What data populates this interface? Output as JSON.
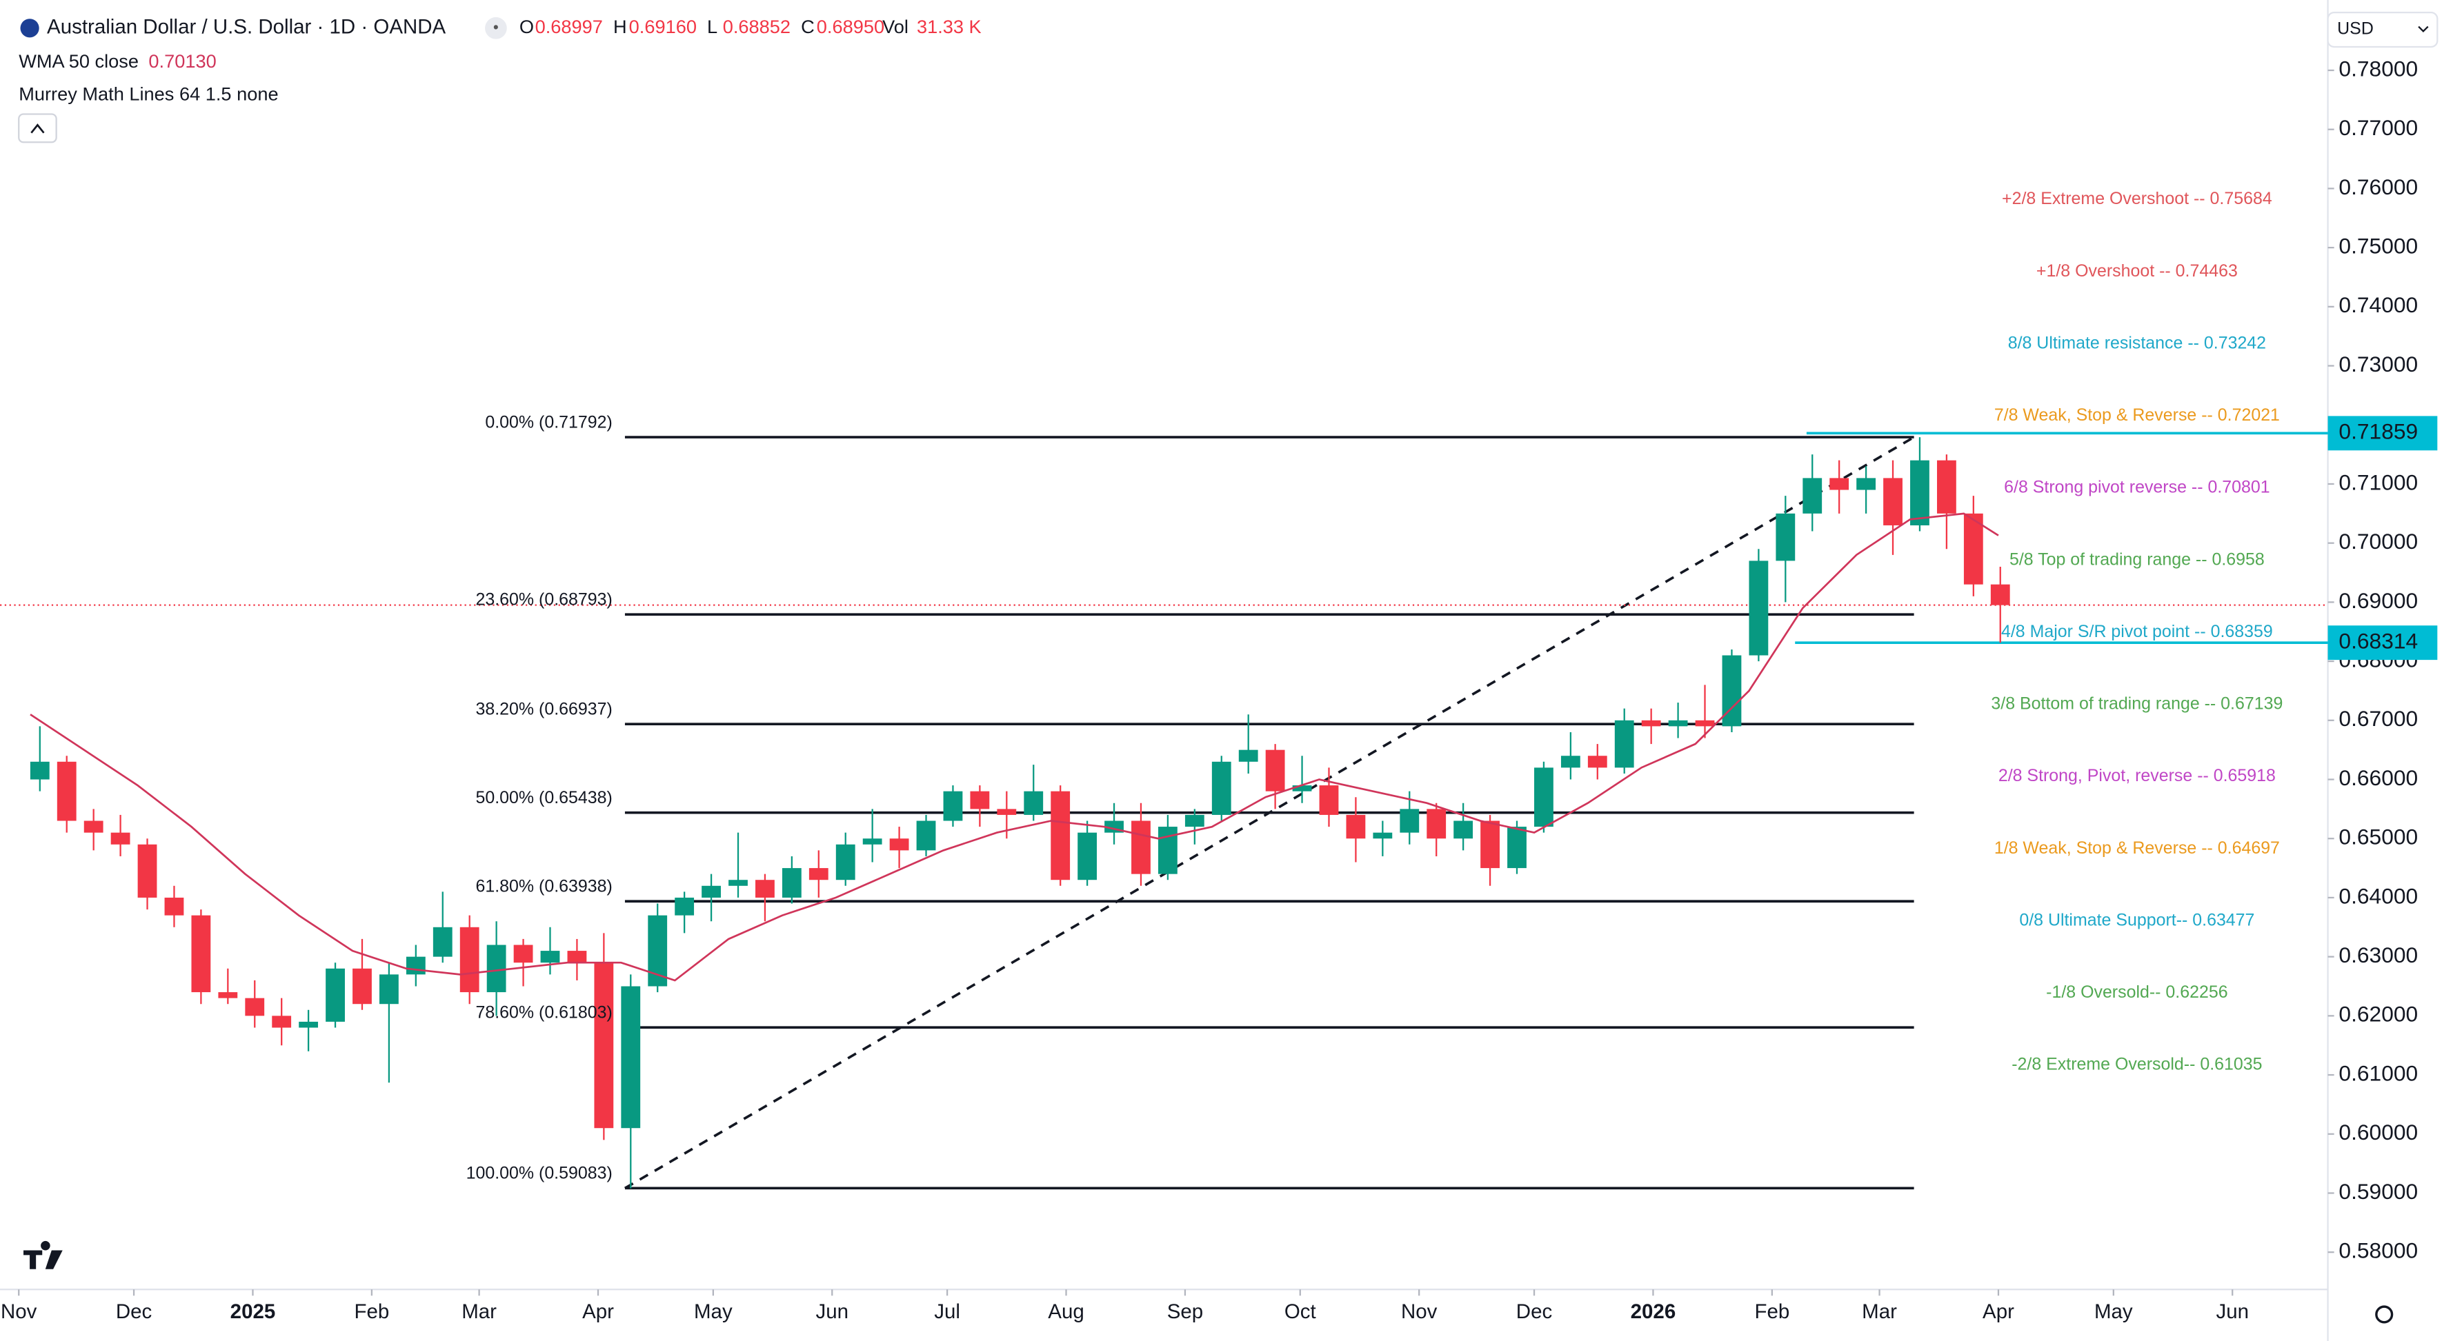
{
  "chart_data": {
    "type": "candlestick",
    "title": "Australian Dollar / U.S. Dollar · 1D · OANDA",
    "ohlc_header": [
      {
        "key": "O",
        "value": 0.68997,
        "label": "0.68997"
      },
      {
        "key": "H",
        "value": 0.6916,
        "label": "0.69160"
      },
      {
        "key": "L",
        "value": 0.68852,
        "label": "0.68852"
      },
      {
        "key": "C",
        "value": 0.6895,
        "label": "0.68950"
      }
    ],
    "volume": {
      "key": "Vol",
      "label": "31.33 K"
    },
    "indicators": [
      {
        "name": "WMA 50 close",
        "value": 0.7013,
        "label": "0.70130"
      },
      {
        "name": "Murrey Math Lines 64 1.5 none"
      }
    ],
    "currency": "USD",
    "xlim": [
      "2024-11-01",
      "2026-06-01"
    ],
    "xticks": [
      {
        "value": "2024-11-01",
        "label": "Nov"
      },
      {
        "value": "2024-12-01",
        "label": "Dec"
      },
      {
        "value": "2025-01-01",
        "label": "2025"
      },
      {
        "value": "2025-02-01",
        "label": "Feb"
      },
      {
        "value": "2025-03-01",
        "label": "Mar"
      },
      {
        "value": "2025-04-01",
        "label": "Apr"
      },
      {
        "value": "2025-05-01",
        "label": "May"
      },
      {
        "value": "2025-06-01",
        "label": "Jun"
      },
      {
        "value": "2025-07-01",
        "label": "Jul"
      },
      {
        "value": "2025-08-01",
        "label": "Aug"
      },
      {
        "value": "2025-09-01",
        "label": "Sep"
      },
      {
        "value": "2025-10-01",
        "label": "Oct"
      },
      {
        "value": "2025-11-01",
        "label": "Nov"
      },
      {
        "value": "2025-12-01",
        "label": "Dec"
      },
      {
        "value": "2026-01-01",
        "label": "2026"
      },
      {
        "value": "2026-02-01",
        "label": "Feb"
      },
      {
        "value": "2026-03-01",
        "label": "Mar"
      },
      {
        "value": "2026-04-01",
        "label": "Apr"
      },
      {
        "value": "2026-05-01",
        "label": "May"
      },
      {
        "value": "2026-06-01",
        "label": "Jun"
      }
    ],
    "ylim": [
      0.5737,
      0.7919
    ],
    "yticks": [
      {
        "value": 0.58,
        "label": "0.58000"
      },
      {
        "value": 0.59,
        "label": "0.59000"
      },
      {
        "value": 0.6,
        "label": "0.60000"
      },
      {
        "value": 0.61,
        "label": "0.61000"
      },
      {
        "value": 0.62,
        "label": "0.62000"
      },
      {
        "value": 0.63,
        "label": "0.63000"
      },
      {
        "value": 0.64,
        "label": "0.64000"
      },
      {
        "value": 0.65,
        "label": "0.65000"
      },
      {
        "value": 0.66,
        "label": "0.66000"
      },
      {
        "value": 0.67,
        "label": "0.67000"
      },
      {
        "value": 0.68,
        "label": "0.68000"
      },
      {
        "value": 0.69,
        "label": "0.69000"
      },
      {
        "value": 0.7,
        "label": "0.70000"
      },
      {
        "value": 0.71,
        "label": "0.71000"
      },
      {
        "value": 0.73,
        "label": "0.73000"
      },
      {
        "value": 0.74,
        "label": "0.74000"
      },
      {
        "value": 0.75,
        "label": "0.75000"
      },
      {
        "value": 0.76,
        "label": "0.76000"
      },
      {
        "value": 0.77,
        "label": "0.77000"
      },
      {
        "value": 0.78,
        "label": "0.78000"
      }
    ],
    "up_color": "#089981",
    "down_color": "#f23645",
    "x": [
      "2024-11-04",
      "2024-11-11",
      "2024-11-18",
      "2024-11-25",
      "2024-12-02",
      "2024-12-09",
      "2024-12-16",
      "2024-12-23",
      "2024-12-30",
      "2025-01-06",
      "2025-01-13",
      "2025-01-20",
      "2025-01-27",
      "2025-02-03",
      "2025-02-10",
      "2025-02-17",
      "2025-02-24",
      "2025-03-03",
      "2025-03-10",
      "2025-03-17",
      "2025-03-24",
      "2025-03-31",
      "2025-04-07",
      "2025-04-14",
      "2025-04-21",
      "2025-04-28",
      "2025-05-05",
      "2025-05-12",
      "2025-05-19",
      "2025-05-26",
      "2025-06-02",
      "2025-06-09",
      "2025-06-16",
      "2025-06-23",
      "2025-06-30",
      "2025-07-07",
      "2025-07-14",
      "2025-07-21",
      "2025-07-28",
      "2025-08-04",
      "2025-08-11",
      "2025-08-18",
      "2025-08-25",
      "2025-09-01",
      "2025-09-08",
      "2025-09-15",
      "2025-09-22",
      "2025-09-29",
      "2025-10-06",
      "2025-10-13",
      "2025-10-20",
      "2025-10-27",
      "2025-11-03",
      "2025-11-10",
      "2025-11-17",
      "2025-11-24",
      "2025-12-01",
      "2025-12-08",
      "2025-12-15",
      "2025-12-22",
      "2025-12-29",
      "2026-01-05",
      "2026-01-12",
      "2026-01-19",
      "2026-01-26",
      "2026-02-02",
      "2026-02-09",
      "2026-02-16",
      "2026-02-23",
      "2026-03-02",
      "2026-03-09",
      "2026-03-16",
      "2026-03-23",
      "2026-03-30"
    ],
    "ohlc": [
      [
        0.66,
        0.669,
        0.658,
        0.663
      ],
      [
        0.663,
        0.664,
        0.651,
        0.653
      ],
      [
        0.653,
        0.655,
        0.648,
        0.651
      ],
      [
        0.651,
        0.654,
        0.647,
        0.649
      ],
      [
        0.649,
        0.65,
        0.638,
        0.64
      ],
      [
        0.64,
        0.642,
        0.635,
        0.637
      ],
      [
        0.637,
        0.638,
        0.622,
        0.624
      ],
      [
        0.624,
        0.628,
        0.622,
        0.623
      ],
      [
        0.623,
        0.626,
        0.618,
        0.62
      ],
      [
        0.62,
        0.623,
        0.615,
        0.618
      ],
      [
        0.618,
        0.621,
        0.614,
        0.619
      ],
      [
        0.619,
        0.629,
        0.618,
        0.628
      ],
      [
        0.628,
        0.633,
        0.621,
        0.622
      ],
      [
        0.622,
        0.629,
        0.6087,
        0.627
      ],
      [
        0.627,
        0.632,
        0.625,
        0.63
      ],
      [
        0.63,
        0.641,
        0.629,
        0.635
      ],
      [
        0.635,
        0.637,
        0.622,
        0.624
      ],
      [
        0.624,
        0.636,
        0.62,
        0.632
      ],
      [
        0.632,
        0.633,
        0.625,
        0.629
      ],
      [
        0.629,
        0.635,
        0.627,
        0.631
      ],
      [
        0.631,
        0.633,
        0.626,
        0.629
      ],
      [
        0.629,
        0.634,
        0.599,
        0.601
      ],
      [
        0.601,
        0.627,
        0.5908,
        0.625
      ],
      [
        0.625,
        0.639,
        0.624,
        0.637
      ],
      [
        0.637,
        0.641,
        0.634,
        0.64
      ],
      [
        0.64,
        0.644,
        0.636,
        0.642
      ],
      [
        0.642,
        0.651,
        0.64,
        0.643
      ],
      [
        0.643,
        0.644,
        0.636,
        0.64
      ],
      [
        0.64,
        0.647,
        0.639,
        0.645
      ],
      [
        0.645,
        0.648,
        0.64,
        0.643
      ],
      [
        0.643,
        0.651,
        0.642,
        0.649
      ],
      [
        0.649,
        0.655,
        0.646,
        0.65
      ],
      [
        0.65,
        0.652,
        0.645,
        0.648
      ],
      [
        0.648,
        0.654,
        0.647,
        0.653
      ],
      [
        0.653,
        0.659,
        0.652,
        0.658
      ],
      [
        0.658,
        0.659,
        0.652,
        0.655
      ],
      [
        0.655,
        0.658,
        0.65,
        0.654
      ],
      [
        0.654,
        0.6625,
        0.653,
        0.658
      ],
      [
        0.658,
        0.659,
        0.642,
        0.643
      ],
      [
        0.643,
        0.653,
        0.642,
        0.651
      ],
      [
        0.651,
        0.656,
        0.649,
        0.653
      ],
      [
        0.653,
        0.656,
        0.642,
        0.644
      ],
      [
        0.644,
        0.654,
        0.643,
        0.652
      ],
      [
        0.652,
        0.655,
        0.649,
        0.654
      ],
      [
        0.654,
        0.664,
        0.653,
        0.663
      ],
      [
        0.663,
        0.671,
        0.661,
        0.665
      ],
      [
        0.665,
        0.666,
        0.655,
        0.658
      ],
      [
        0.658,
        0.664,
        0.656,
        0.659
      ],
      [
        0.659,
        0.662,
        0.652,
        0.654
      ],
      [
        0.654,
        0.657,
        0.646,
        0.65
      ],
      [
        0.65,
        0.653,
        0.647,
        0.651
      ],
      [
        0.651,
        0.658,
        0.649,
        0.655
      ],
      [
        0.655,
        0.656,
        0.647,
        0.65
      ],
      [
        0.65,
        0.656,
        0.648,
        0.653
      ],
      [
        0.653,
        0.654,
        0.642,
        0.645
      ],
      [
        0.645,
        0.653,
        0.644,
        0.652
      ],
      [
        0.652,
        0.663,
        0.651,
        0.662
      ],
      [
        0.662,
        0.668,
        0.66,
        0.664
      ],
      [
        0.664,
        0.666,
        0.66,
        0.662
      ],
      [
        0.662,
        0.672,
        0.661,
        0.67
      ],
      [
        0.67,
        0.672,
        0.666,
        0.669
      ],
      [
        0.669,
        0.673,
        0.667,
        0.67
      ],
      [
        0.67,
        0.676,
        0.667,
        0.669
      ],
      [
        0.669,
        0.682,
        0.668,
        0.681
      ],
      [
        0.681,
        0.699,
        0.68,
        0.697
      ],
      [
        0.697,
        0.708,
        0.69,
        0.705
      ],
      [
        0.705,
        0.715,
        0.702,
        0.711
      ],
      [
        0.711,
        0.714,
        0.705,
        0.709
      ],
      [
        0.709,
        0.713,
        0.705,
        0.711
      ],
      [
        0.711,
        0.714,
        0.698,
        0.703
      ],
      [
        0.703,
        0.71792,
        0.702,
        0.714
      ],
      [
        0.714,
        0.715,
        0.699,
        0.705
      ],
      [
        0.705,
        0.708,
        0.691,
        0.693
      ],
      [
        0.693,
        0.696,
        0.68314,
        0.6895
      ]
    ],
    "wma": {
      "color": "#d0355a",
      "x": [
        "2024-11-04",
        "2024-11-18",
        "2024-12-02",
        "2024-12-16",
        "2024-12-30",
        "2025-01-13",
        "2025-01-27",
        "2025-02-10",
        "2025-02-24",
        "2025-03-10",
        "2025-03-24",
        "2025-04-07",
        "2025-04-21",
        "2025-05-05",
        "2025-05-19",
        "2025-06-02",
        "2025-06-16",
        "2025-06-30",
        "2025-07-14",
        "2025-07-28",
        "2025-08-11",
        "2025-08-25",
        "2025-09-08",
        "2025-09-22",
        "2025-10-06",
        "2025-10-20",
        "2025-11-03",
        "2025-11-17",
        "2025-12-01",
        "2025-12-15",
        "2025-12-29",
        "2026-01-12",
        "2026-01-26",
        "2026-02-09",
        "2026-02-23",
        "2026-03-09",
        "2026-03-23",
        "2026-04-01"
      ],
      "values": [
        0.671,
        0.665,
        0.659,
        0.652,
        0.644,
        0.637,
        0.631,
        0.628,
        0.627,
        0.628,
        0.629,
        0.629,
        0.626,
        0.633,
        0.637,
        0.64,
        0.644,
        0.648,
        0.651,
        0.653,
        0.652,
        0.65,
        0.652,
        0.657,
        0.66,
        0.658,
        0.656,
        0.653,
        0.651,
        0.656,
        0.662,
        0.666,
        0.675,
        0.689,
        0.698,
        0.704,
        0.705,
        0.7013
      ]
    },
    "fib": {
      "start": "2025-04-08",
      "end": "2026-03-10",
      "levels": [
        {
          "label": "0.00% (0.71792)",
          "value": 0.71792
        },
        {
          "label": "23.60% (0.68793)",
          "value": 0.68793
        },
        {
          "label": "38.20% (0.66937)",
          "value": 0.66937
        },
        {
          "label": "50.00% (0.65438)",
          "value": 0.65438
        },
        {
          "label": "61.80% (0.63938)",
          "value": 0.63938
        },
        {
          "label": "78.60% (0.61803)",
          "value": 0.61803
        },
        {
          "label": "100.00% (0.59083)",
          "value": 0.59083
        }
      ]
    },
    "murrey": [
      {
        "name": "+2/8 Extreme Overshoot --",
        "value": 0.75684,
        "color": "#e0555a"
      },
      {
        "name": "+1/8 Overshoot --",
        "value": 0.74463,
        "color": "#e0555a"
      },
      {
        "name": "8/8 Ultimate resistance --",
        "value": 0.73242,
        "color": "#1fa8c9"
      },
      {
        "name": "7/8 Weak, Stop & Reverse --",
        "value": 0.72021,
        "color": "#eb9a1e"
      },
      {
        "name": "6/8 Strong pivot reverse --",
        "value": 0.70801,
        "color": "#c046c6"
      },
      {
        "name": "5/8 Top of trading range --",
        "value": 0.6958,
        "color": "#52a852"
      },
      {
        "name": "4/8 Major S/R pivot point --",
        "value": 0.68359,
        "color": "#1fa8c9"
      },
      {
        "name": "3/8 Bottom of trading range --",
        "value": 0.67139,
        "color": "#52a852"
      },
      {
        "name": "2/8 Strong, Pivot, reverse --",
        "value": 0.65918,
        "color": "#c046c6"
      },
      {
        "name": "1/8 Weak, Stop & Reverse --",
        "value": 0.64697,
        "color": "#eb9a1e"
      },
      {
        "name": "0/8 Ultimate Support--",
        "value": 0.63477,
        "color": "#1fa8c9"
      },
      {
        "name": "-1/8 Oversold--",
        "value": 0.62256,
        "color": "#52a852"
      },
      {
        "name": "-2/8 Extreme Oversold--",
        "value": 0.61035,
        "color": "#52a852"
      }
    ],
    "price_lines": [
      {
        "start": "2026-02-10",
        "value": 0.71859,
        "label": "0.71859",
        "color": "#00bcd4"
      },
      {
        "start": "2026-02-07",
        "value": 0.68314,
        "label": "0.68314",
        "color": "#00bcd4"
      }
    ]
  }
}
